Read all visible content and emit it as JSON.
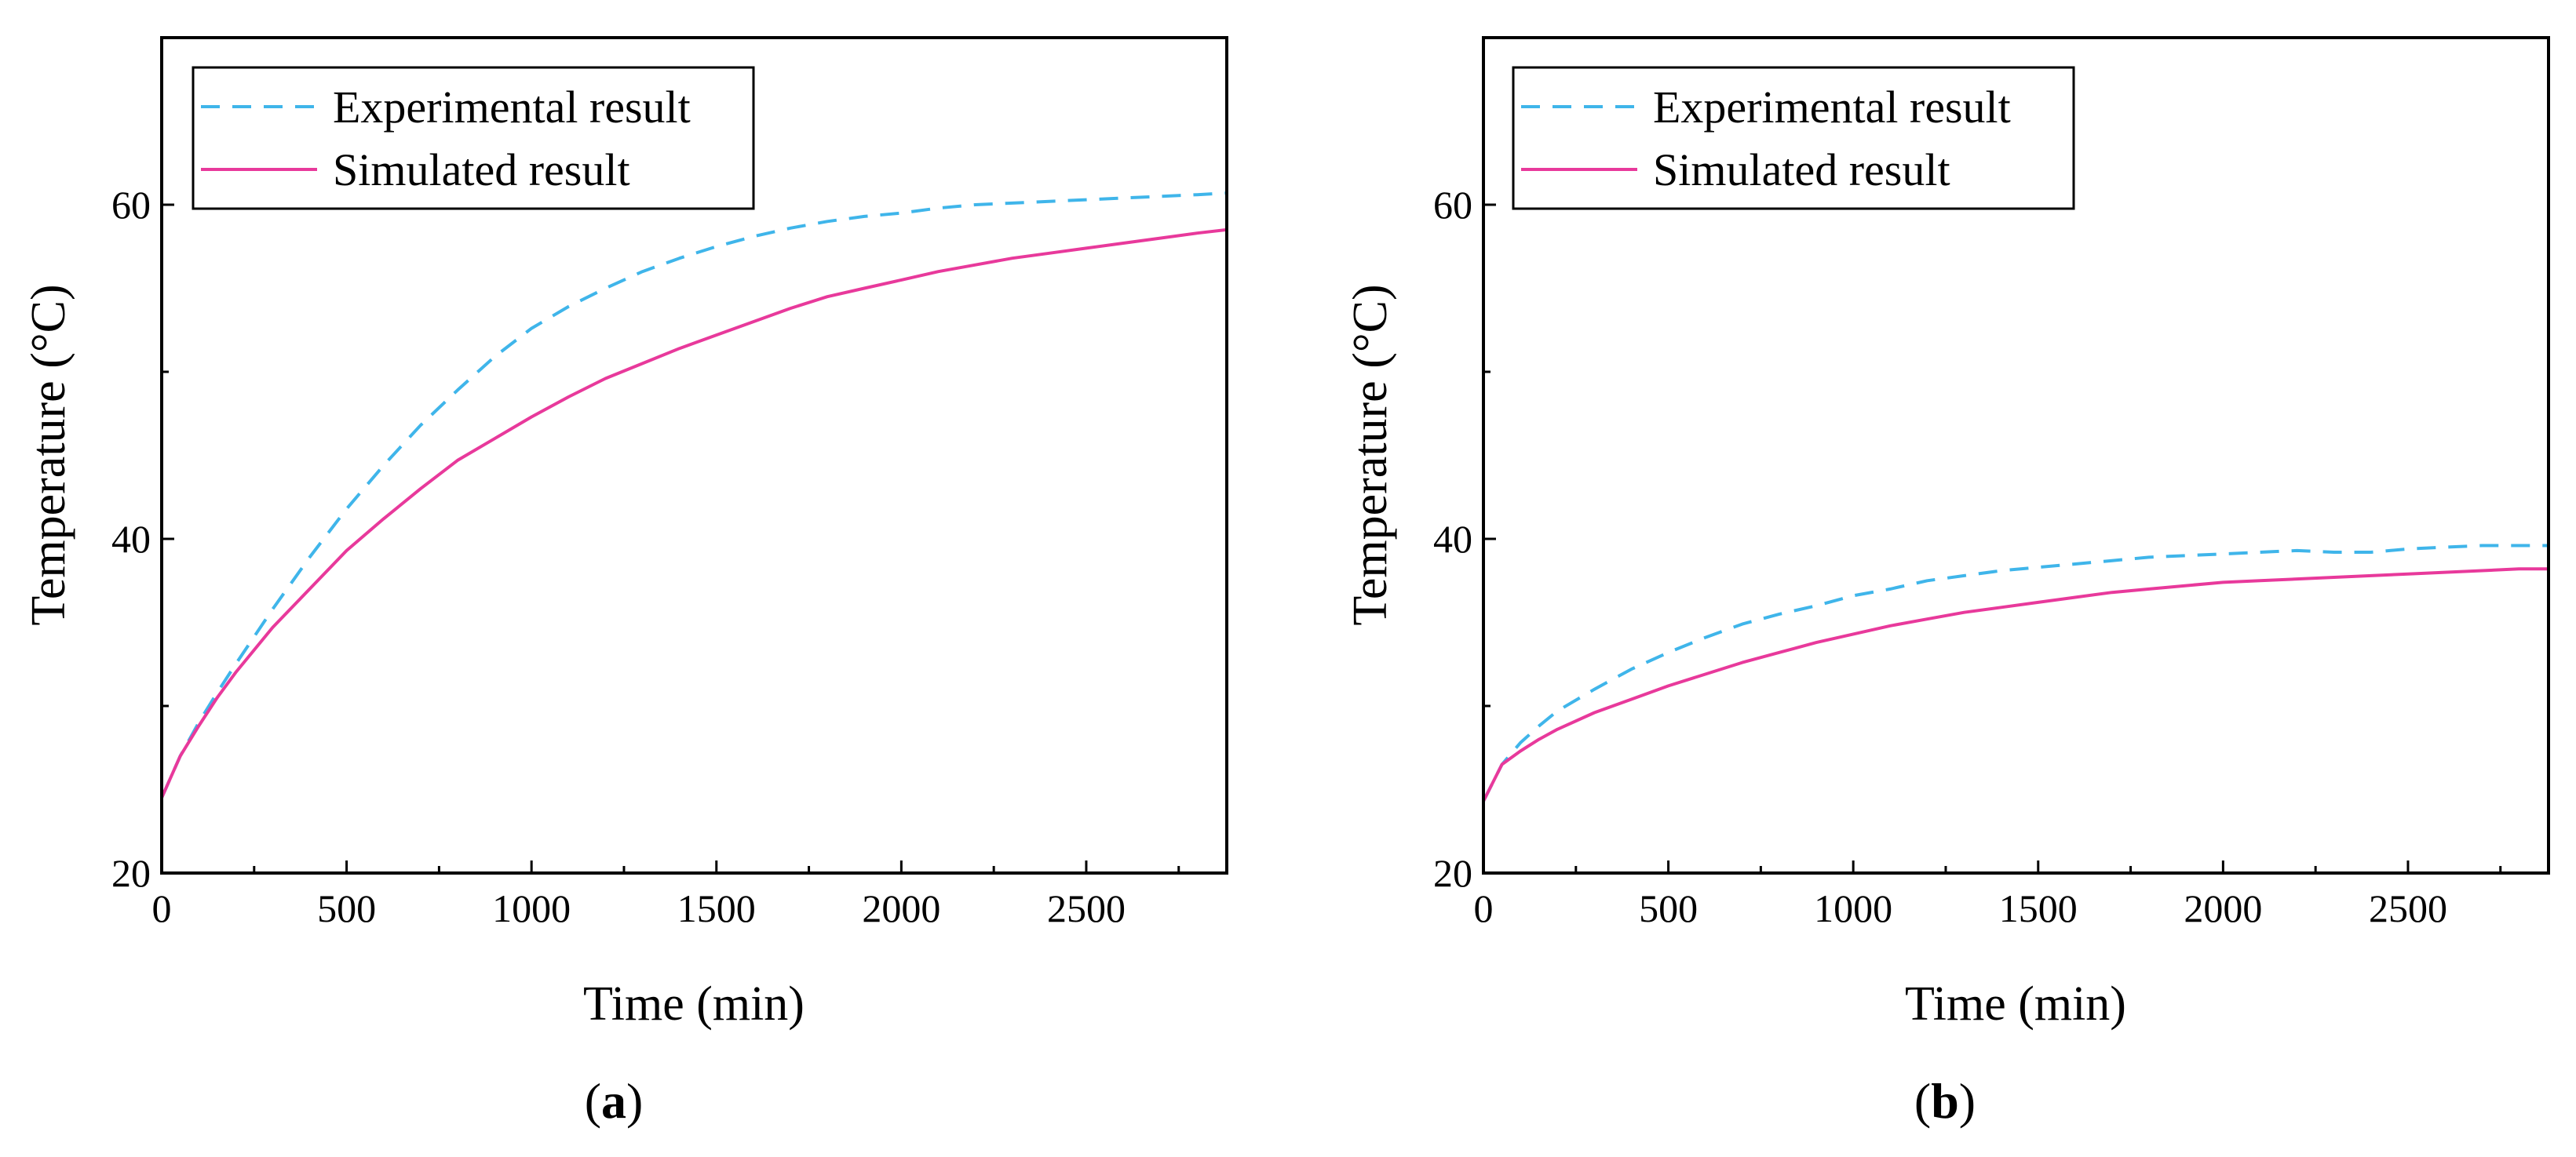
{
  "chart_data": [
    {
      "type": "line",
      "panel_label": "a",
      "xlabel": "Time (min)",
      "ylabel": "Temperature (°C)",
      "xlim": [
        0,
        2880
      ],
      "ylim": [
        20,
        70
      ],
      "xticks": [
        0,
        500,
        1000,
        1500,
        2000,
        2500
      ],
      "yticks": [
        20,
        40,
        60
      ],
      "legend_position": "top-left",
      "series": [
        {
          "name": "Experimental result",
          "style": "dashed",
          "color": "#3fb5ea",
          "x": [
            0,
            50,
            100,
            150,
            200,
            300,
            400,
            500,
            600,
            700,
            800,
            900,
            1000,
            1100,
            1200,
            1300,
            1400,
            1500,
            1600,
            1700,
            1800,
            1900,
            2000,
            2100,
            2200,
            2300,
            2400,
            2500,
            2600,
            2700,
            2800,
            2880
          ],
          "values": [
            24.5,
            27.0,
            29.0,
            30.8,
            32.5,
            35.8,
            38.9,
            41.8,
            44.4,
            46.8,
            48.9,
            50.9,
            52.6,
            53.9,
            55.0,
            56.0,
            56.8,
            57.5,
            58.1,
            58.6,
            59.0,
            59.3,
            59.5,
            59.8,
            60.0,
            60.1,
            60.2,
            60.3,
            60.4,
            60.5,
            60.6,
            60.7
          ]
        },
        {
          "name": "Simulated result",
          "style": "solid",
          "color": "#e8399b",
          "x": [
            0,
            50,
            100,
            150,
            200,
            300,
            400,
            500,
            600,
            700,
            800,
            900,
            1000,
            1100,
            1200,
            1300,
            1400,
            1500,
            1600,
            1700,
            1800,
            1900,
            2000,
            2100,
            2200,
            2300,
            2400,
            2500,
            2600,
            2700,
            2800,
            2880
          ],
          "values": [
            24.5,
            27.0,
            28.8,
            30.5,
            32.0,
            34.7,
            37.0,
            39.3,
            41.2,
            43.0,
            44.7,
            46.0,
            47.3,
            48.5,
            49.6,
            50.5,
            51.4,
            52.2,
            53.0,
            53.8,
            54.5,
            55.0,
            55.5,
            56.0,
            56.4,
            56.8,
            57.1,
            57.4,
            57.7,
            58.0,
            58.3,
            58.5
          ]
        }
      ]
    },
    {
      "type": "line",
      "panel_label": "b",
      "xlabel": "Time (min)",
      "ylabel": "Temperature (°C)",
      "xlim": [
        0,
        2880
      ],
      "ylim": [
        20,
        70
      ],
      "xticks": [
        0,
        500,
        1000,
        1500,
        2000,
        2500
      ],
      "yticks": [
        20,
        40,
        60
      ],
      "legend_position": "top-left",
      "series": [
        {
          "name": "Experimental result",
          "style": "dashed",
          "color": "#3fb5ea",
          "x": [
            0,
            50,
            100,
            150,
            200,
            300,
            400,
            500,
            600,
            700,
            800,
            900,
            1000,
            1100,
            1200,
            1300,
            1400,
            1500,
            1600,
            1700,
            1800,
            1900,
            2000,
            2100,
            2200,
            2300,
            2400,
            2500,
            2600,
            2700,
            2800,
            2880
          ],
          "values": [
            24.3,
            26.5,
            27.8,
            28.8,
            29.7,
            31.0,
            32.2,
            33.2,
            34.1,
            34.9,
            35.5,
            36.0,
            36.6,
            37.0,
            37.5,
            37.8,
            38.1,
            38.3,
            38.5,
            38.7,
            38.9,
            39.0,
            39.1,
            39.2,
            39.3,
            39.2,
            39.2,
            39.4,
            39.5,
            39.6,
            39.6,
            39.6
          ]
        },
        {
          "name": "Simulated result",
          "style": "solid",
          "color": "#e8399b",
          "x": [
            0,
            50,
            100,
            150,
            200,
            300,
            400,
            500,
            600,
            700,
            800,
            900,
            1000,
            1100,
            1200,
            1300,
            1400,
            1500,
            1600,
            1700,
            1800,
            1900,
            2000,
            2100,
            2200,
            2300,
            2400,
            2500,
            2600,
            2700,
            2800,
            2880
          ],
          "values": [
            24.3,
            26.5,
            27.3,
            28.0,
            28.6,
            29.6,
            30.4,
            31.2,
            31.9,
            32.6,
            33.2,
            33.8,
            34.3,
            34.8,
            35.2,
            35.6,
            35.9,
            36.2,
            36.5,
            36.8,
            37.0,
            37.2,
            37.4,
            37.5,
            37.6,
            37.7,
            37.8,
            37.9,
            38.0,
            38.1,
            38.2,
            38.2
          ]
        }
      ]
    }
  ]
}
